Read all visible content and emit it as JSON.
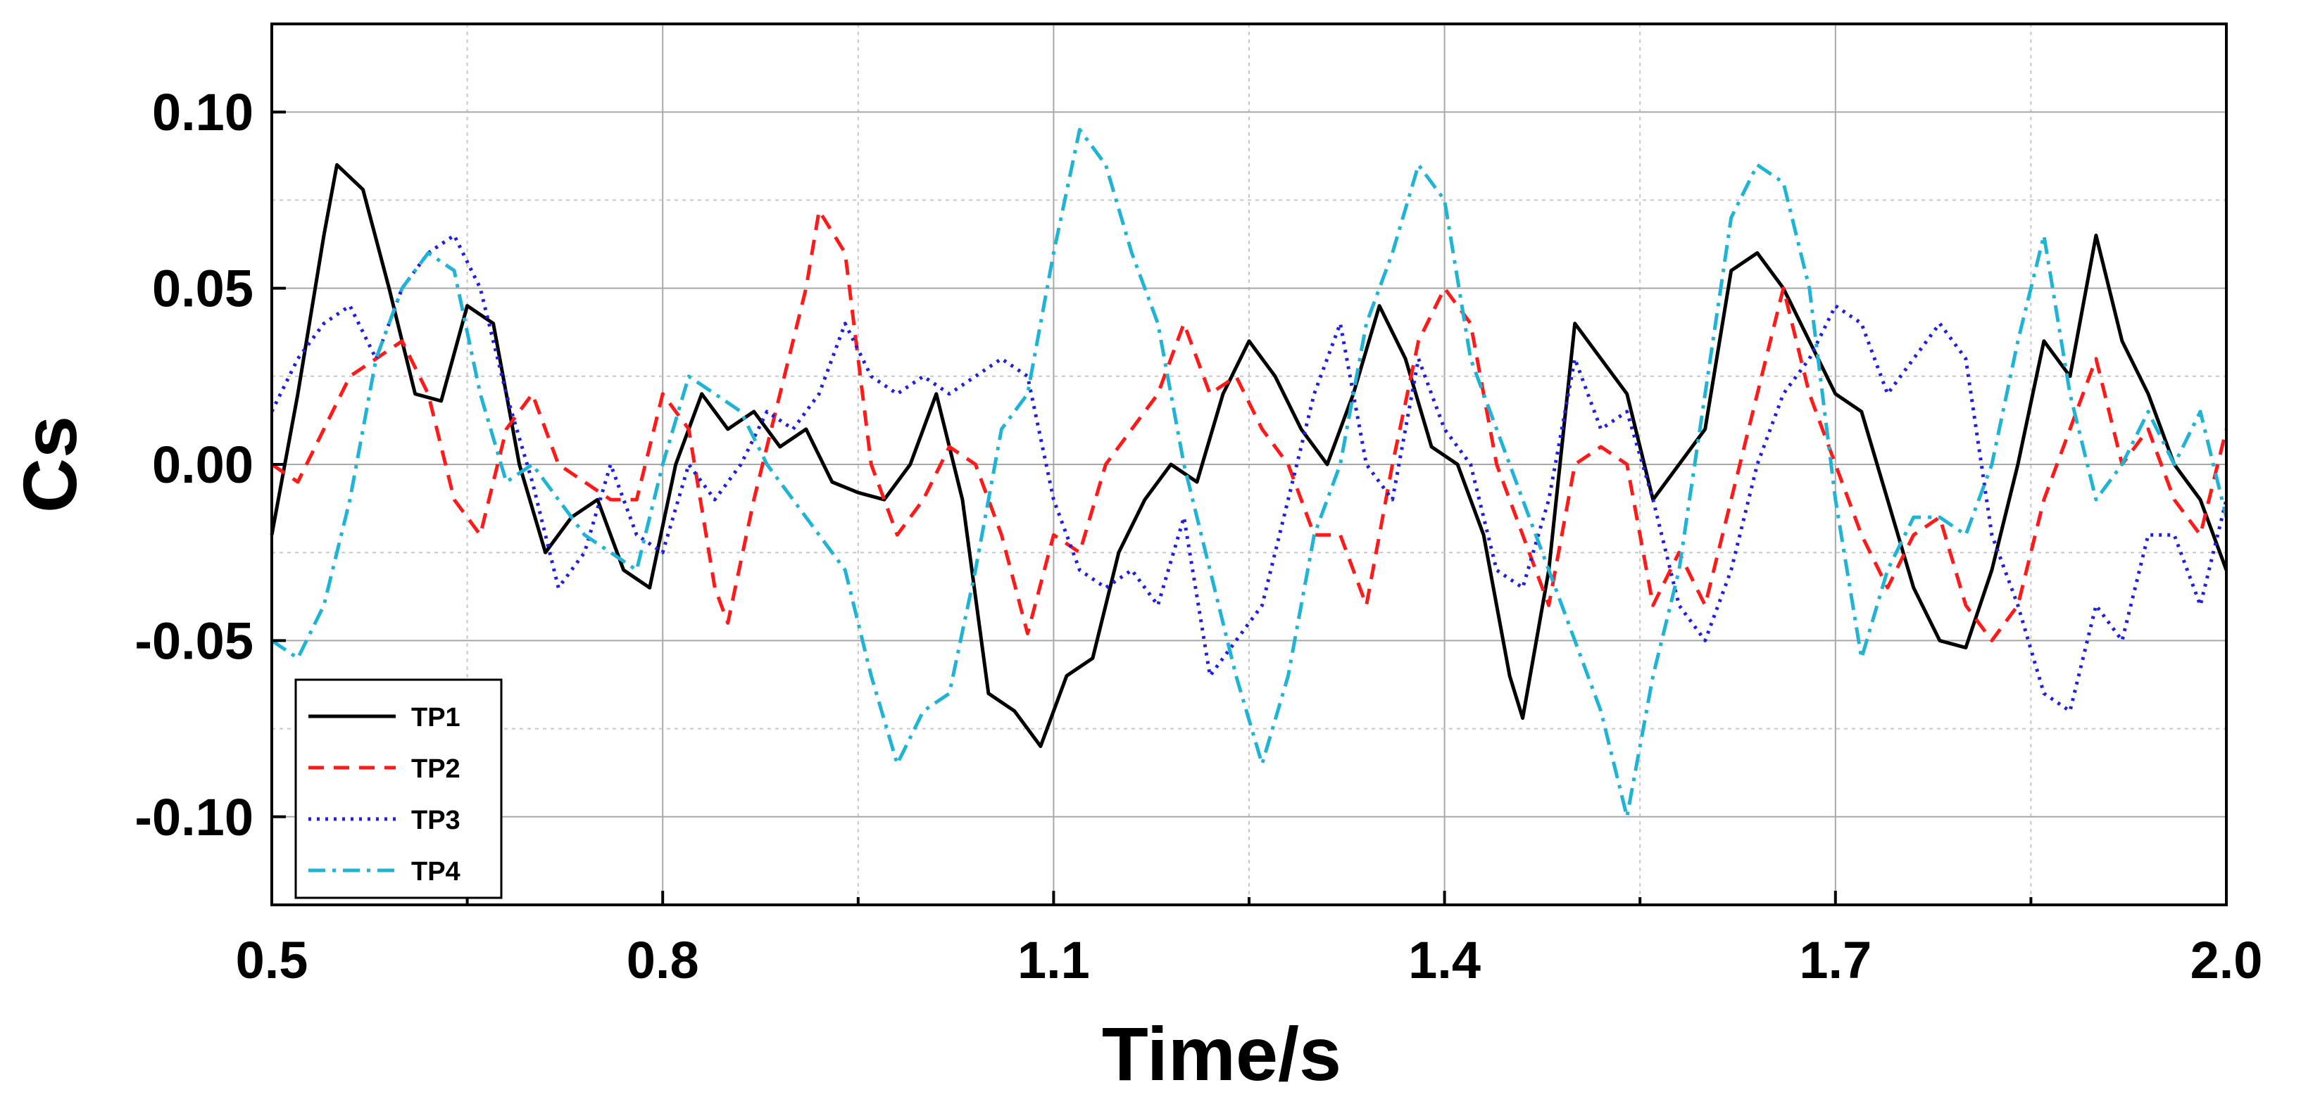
{
  "chart_data": {
    "type": "line",
    "title": "",
    "xlabel": "Time/s",
    "ylabel": "Cs",
    "xlim": [
      0.5,
      2.0
    ],
    "ylim": [
      -0.125,
      0.125
    ],
    "xticks": [
      0.5,
      0.8,
      1.1,
      1.4,
      1.7,
      2.0
    ],
    "xtick_labels": [
      "0.5",
      "0.8",
      "1.1",
      "1.4",
      "1.7",
      "2.0"
    ],
    "yticks": [
      -0.1,
      -0.05,
      0.0,
      0.05,
      0.1
    ],
    "ytick_labels": [
      "-0.10",
      "-0.05",
      "0.00",
      "0.05",
      "0.10"
    ],
    "grid": true,
    "legend_position": "bottom-left",
    "series": [
      {
        "name": "TP1",
        "color": "#000000",
        "dash": "solid",
        "x": [
          0.5,
          0.52,
          0.54,
          0.55,
          0.57,
          0.59,
          0.61,
          0.63,
          0.65,
          0.67,
          0.69,
          0.71,
          0.73,
          0.75,
          0.77,
          0.79,
          0.81,
          0.83,
          0.85,
          0.87,
          0.89,
          0.91,
          0.93,
          0.95,
          0.97,
          0.99,
          1.01,
          1.03,
          1.05,
          1.07,
          1.09,
          1.11,
          1.13,
          1.15,
          1.17,
          1.19,
          1.21,
          1.23,
          1.25,
          1.27,
          1.29,
          1.31,
          1.33,
          1.35,
          1.37,
          1.39,
          1.41,
          1.43,
          1.45,
          1.46,
          1.48,
          1.5,
          1.52,
          1.54,
          1.56,
          1.58,
          1.6,
          1.62,
          1.64,
          1.66,
          1.68,
          1.7,
          1.72,
          1.74,
          1.76,
          1.78,
          1.8,
          1.82,
          1.84,
          1.86,
          1.88,
          1.9,
          1.92,
          1.94,
          1.96,
          1.98,
          2.0
        ],
        "values": [
          -0.02,
          0.02,
          0.065,
          0.085,
          0.078,
          0.05,
          0.02,
          0.018,
          0.045,
          0.04,
          0.0,
          -0.025,
          -0.015,
          -0.01,
          -0.03,
          -0.035,
          0.0,
          0.02,
          0.01,
          0.015,
          0.005,
          0.01,
          -0.005,
          -0.008,
          -0.01,
          0.0,
          0.02,
          -0.01,
          -0.065,
          -0.07,
          -0.08,
          -0.06,
          -0.055,
          -0.025,
          -0.01,
          0.0,
          -0.005,
          0.02,
          0.035,
          0.025,
          0.01,
          0.0,
          0.02,
          0.045,
          0.03,
          0.005,
          0.0,
          -0.02,
          -0.06,
          -0.072,
          -0.03,
          0.04,
          0.03,
          0.02,
          -0.01,
          0.0,
          0.01,
          0.055,
          0.06,
          0.05,
          0.035,
          0.02,
          0.015,
          -0.01,
          -0.035,
          -0.05,
          -0.052,
          -0.03,
          0.0,
          0.035,
          0.025,
          0.065,
          0.035,
          0.02,
          0.0,
          -0.01,
          -0.03
        ]
      },
      {
        "name": "TP2",
        "color": "#ff1a1a",
        "dash": "dashed",
        "x": [
          0.5,
          0.52,
          0.54,
          0.56,
          0.58,
          0.6,
          0.62,
          0.64,
          0.66,
          0.68,
          0.7,
          0.72,
          0.74,
          0.76,
          0.78,
          0.8,
          0.82,
          0.84,
          0.85,
          0.87,
          0.89,
          0.91,
          0.92,
          0.94,
          0.96,
          0.98,
          1.0,
          1.02,
          1.04,
          1.06,
          1.08,
          1.1,
          1.12,
          1.14,
          1.16,
          1.18,
          1.2,
          1.22,
          1.24,
          1.26,
          1.28,
          1.3,
          1.32,
          1.34,
          1.36,
          1.38,
          1.4,
          1.42,
          1.44,
          1.46,
          1.48,
          1.5,
          1.52,
          1.54,
          1.56,
          1.58,
          1.6,
          1.62,
          1.64,
          1.66,
          1.68,
          1.7,
          1.72,
          1.74,
          1.76,
          1.78,
          1.8,
          1.82,
          1.84,
          1.86,
          1.88,
          1.9,
          1.92,
          1.94,
          1.96,
          1.98,
          2.0
        ],
        "values": [
          0.0,
          -0.005,
          0.01,
          0.025,
          0.03,
          0.035,
          0.02,
          -0.01,
          -0.02,
          0.01,
          0.02,
          0.0,
          -0.005,
          -0.01,
          -0.01,
          0.02,
          0.01,
          -0.035,
          -0.045,
          -0.01,
          0.02,
          0.05,
          0.072,
          0.06,
          0.0,
          -0.02,
          -0.01,
          0.005,
          0.0,
          -0.02,
          -0.048,
          -0.02,
          -0.025,
          0.0,
          0.01,
          0.02,
          0.04,
          0.02,
          0.025,
          0.01,
          0.0,
          -0.02,
          -0.02,
          -0.04,
          0.0,
          0.035,
          0.05,
          0.04,
          0.0,
          -0.02,
          -0.04,
          0.0,
          0.005,
          0.0,
          -0.04,
          -0.025,
          -0.04,
          -0.01,
          0.02,
          0.05,
          0.02,
          0.0,
          -0.02,
          -0.035,
          -0.02,
          -0.015,
          -0.04,
          -0.05,
          -0.04,
          -0.01,
          0.01,
          0.03,
          0.0,
          0.01,
          -0.01,
          -0.02,
          0.01
        ]
      },
      {
        "name": "TP3",
        "color": "#1f1fe0",
        "dash": "dotted",
        "x": [
          0.5,
          0.52,
          0.54,
          0.56,
          0.58,
          0.6,
          0.62,
          0.64,
          0.66,
          0.68,
          0.7,
          0.72,
          0.74,
          0.76,
          0.78,
          0.8,
          0.82,
          0.84,
          0.86,
          0.88,
          0.9,
          0.92,
          0.94,
          0.96,
          0.98,
          1.0,
          1.02,
          1.04,
          1.06,
          1.08,
          1.1,
          1.12,
          1.14,
          1.16,
          1.18,
          1.2,
          1.22,
          1.24,
          1.26,
          1.28,
          1.3,
          1.32,
          1.34,
          1.36,
          1.38,
          1.4,
          1.42,
          1.44,
          1.46,
          1.48,
          1.5,
          1.52,
          1.54,
          1.56,
          1.58,
          1.6,
          1.62,
          1.64,
          1.66,
          1.68,
          1.7,
          1.72,
          1.74,
          1.76,
          1.78,
          1.8,
          1.82,
          1.84,
          1.86,
          1.88,
          1.9,
          1.92,
          1.94,
          1.96,
          1.98,
          2.0
        ],
        "values": [
          0.015,
          0.03,
          0.04,
          0.045,
          0.03,
          0.05,
          0.06,
          0.065,
          0.05,
          0.02,
          -0.005,
          -0.035,
          -0.025,
          0.0,
          -0.02,
          -0.025,
          0.0,
          -0.01,
          0.0,
          0.015,
          0.01,
          0.02,
          0.04,
          0.025,
          0.02,
          0.025,
          0.02,
          0.025,
          0.03,
          0.025,
          -0.01,
          -0.03,
          -0.035,
          -0.03,
          -0.04,
          -0.015,
          -0.06,
          -0.05,
          -0.04,
          -0.01,
          0.02,
          0.04,
          0.0,
          -0.01,
          0.03,
          0.01,
          0.0,
          -0.03,
          -0.035,
          -0.01,
          0.03,
          0.01,
          0.015,
          -0.01,
          -0.04,
          -0.05,
          -0.03,
          0.0,
          0.02,
          0.03,
          0.045,
          0.04,
          0.02,
          0.03,
          0.04,
          0.03,
          -0.02,
          -0.04,
          -0.065,
          -0.07,
          -0.04,
          -0.05,
          -0.02,
          -0.02,
          -0.04,
          -0.01
        ]
      },
      {
        "name": "TP4",
        "color": "#1fb3d6",
        "dash": "dashdot",
        "x": [
          0.5,
          0.52,
          0.54,
          0.56,
          0.58,
          0.6,
          0.62,
          0.64,
          0.66,
          0.68,
          0.7,
          0.72,
          0.74,
          0.76,
          0.78,
          0.8,
          0.82,
          0.84,
          0.86,
          0.88,
          0.9,
          0.92,
          0.94,
          0.96,
          0.98,
          1.0,
          1.02,
          1.04,
          1.06,
          1.08,
          1.1,
          1.12,
          1.14,
          1.16,
          1.18,
          1.2,
          1.22,
          1.24,
          1.26,
          1.28,
          1.3,
          1.32,
          1.34,
          1.36,
          1.38,
          1.4,
          1.42,
          1.44,
          1.46,
          1.48,
          1.5,
          1.52,
          1.54,
          1.56,
          1.58,
          1.6,
          1.62,
          1.64,
          1.66,
          1.68,
          1.7,
          1.72,
          1.74,
          1.76,
          1.78,
          1.8,
          1.82,
          1.84,
          1.86,
          1.88,
          1.9,
          1.92,
          1.94,
          1.96,
          1.98,
          2.0
        ],
        "values": [
          -0.05,
          -0.055,
          -0.04,
          -0.01,
          0.03,
          0.05,
          0.06,
          0.055,
          0.02,
          -0.005,
          0.0,
          -0.01,
          -0.02,
          -0.025,
          -0.03,
          0.0,
          0.025,
          0.02,
          0.015,
          0.0,
          -0.01,
          -0.02,
          -0.03,
          -0.06,
          -0.085,
          -0.07,
          -0.065,
          -0.03,
          0.01,
          0.02,
          0.06,
          0.095,
          0.085,
          0.06,
          0.04,
          0.0,
          -0.03,
          -0.06,
          -0.085,
          -0.06,
          -0.02,
          0.0,
          0.04,
          0.06,
          0.085,
          0.075,
          0.03,
          0.01,
          -0.01,
          -0.03,
          -0.05,
          -0.07,
          -0.1,
          -0.06,
          -0.03,
          0.02,
          0.07,
          0.085,
          0.08,
          0.05,
          -0.01,
          -0.055,
          -0.03,
          -0.015,
          -0.015,
          -0.02,
          0.0,
          0.035,
          0.065,
          0.02,
          -0.01,
          0.0,
          0.015,
          0.0,
          0.015,
          -0.015
        ]
      }
    ]
  }
}
